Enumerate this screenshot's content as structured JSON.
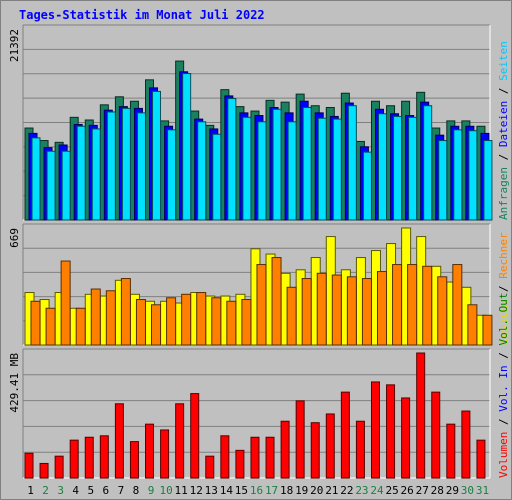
{
  "title": "Tages-Statistik im Monat Juli 2022",
  "chart_data": [
    {
      "type": "bar",
      "panel": "anfragen",
      "y_label": "21392",
      "ylim": [
        0,
        21392
      ],
      "categories": [
        "1",
        "2",
        "3",
        "4",
        "5",
        "6",
        "7",
        "8",
        "9",
        "10",
        "11",
        "12",
        "13",
        "14",
        "15",
        "16",
        "17",
        "18",
        "19",
        "20",
        "21",
        "22",
        "23",
        "24",
        "25",
        "26",
        "27",
        "28",
        "29",
        "30",
        "31"
      ],
      "weekend_days": [
        "2",
        "3",
        "9",
        "10",
        "16",
        "17",
        "23",
        "24",
        "30",
        "31"
      ],
      "side_labels": [
        {
          "text": "Anfragen",
          "color": "#1a8060"
        },
        {
          "text": "/",
          "color": "#000000"
        },
        {
          "text": "Dateien",
          "color": "#0000ff"
        },
        {
          "text": "/",
          "color": "#000000"
        },
        {
          "text": "Seiten",
          "color": "#00c8ff"
        }
      ],
      "series": [
        {
          "name": "Anfragen",
          "color": "#1a8060",
          "values": [
            10300,
            8900,
            8700,
            11500,
            11200,
            12900,
            13800,
            13300,
            15700,
            11100,
            17800,
            12200,
            10600,
            14600,
            12700,
            12200,
            13400,
            13200,
            14100,
            12800,
            12600,
            14200,
            8800,
            13300,
            12800,
            13300,
            14300,
            10300,
            11100,
            11100,
            10500
          ]
        },
        {
          "name": "Dateien",
          "color": "#0000ff",
          "values": [
            9700,
            8100,
            8400,
            10700,
            10600,
            12300,
            12700,
            12500,
            14800,
            10500,
            16600,
            11300,
            10200,
            13900,
            12000,
            11700,
            12600,
            12000,
            13300,
            12000,
            11600,
            13100,
            8200,
            12400,
            11900,
            11700,
            13200,
            9500,
            10500,
            10500,
            9700
          ]
        },
        {
          "name": "Seiten",
          "color": "#00e0ff",
          "values": [
            9200,
            7700,
            7700,
            10500,
            10200,
            12100,
            12500,
            12000,
            14400,
            10100,
            16400,
            11000,
            9600,
            13600,
            11500,
            11000,
            12400,
            11000,
            12600,
            11400,
            11300,
            12800,
            7600,
            11900,
            11600,
            11500,
            12800,
            8900,
            10100,
            10000,
            8900
          ]
        }
      ]
    },
    {
      "type": "bar",
      "panel": "besuche",
      "y_label": "669",
      "ylim": [
        0,
        669
      ],
      "categories": [
        "1",
        "2",
        "3",
        "4",
        "5",
        "6",
        "7",
        "8",
        "9",
        "10",
        "11",
        "12",
        "13",
        "14",
        "15",
        "16",
        "17",
        "18",
        "19",
        "20",
        "21",
        "22",
        "23",
        "24",
        "25",
        "26",
        "27",
        "28",
        "29",
        "30",
        "31"
      ],
      "side_labels": [
        {
          "text": "Besuche",
          "color": "#e0e000"
        },
        {
          "text": "/",
          "color": "#000000"
        },
        {
          "text": "Rechner",
          "color": "#ff8000"
        }
      ],
      "series": [
        {
          "name": "Besuche",
          "color": "#ffff00",
          "values": [
            300,
            260,
            300,
            210,
            290,
            280,
            370,
            290,
            250,
            250,
            240,
            300,
            280,
            280,
            290,
            550,
            520,
            410,
            430,
            500,
            620,
            430,
            500,
            540,
            580,
            670,
            620,
            450,
            360,
            330,
            170
          ]
        },
        {
          "name": "Rechner",
          "color": "#ff8000",
          "values": [
            250,
            210,
            480,
            210,
            320,
            310,
            380,
            260,
            230,
            270,
            290,
            300,
            270,
            250,
            260,
            460,
            500,
            330,
            380,
            410,
            400,
            390,
            380,
            420,
            460,
            460,
            450,
            390,
            460,
            230,
            170
          ]
        }
      ]
    },
    {
      "type": "bar",
      "panel": "volumen",
      "y_label": "429.41 MB",
      "ylim": [
        0,
        429.41
      ],
      "categories": [
        "1",
        "2",
        "3",
        "4",
        "5",
        "6",
        "7",
        "8",
        "9",
        "10",
        "11",
        "12",
        "13",
        "14",
        "15",
        "16",
        "17",
        "18",
        "19",
        "20",
        "21",
        "22",
        "23",
        "24",
        "25",
        "26",
        "27",
        "28",
        "29",
        "30",
        "31"
      ],
      "side_labels": [
        {
          "text": "Volumen",
          "color": "#ff0000"
        },
        {
          "text": "/",
          "color": "#000000"
        },
        {
          "text": "Vol. In",
          "color": "#0000ff"
        },
        {
          "text": "/",
          "color": "#000000"
        },
        {
          "text": "Vol. Out",
          "color": "#008000"
        }
      ],
      "series": [
        {
          "name": "Volumen",
          "color": "#ff0000",
          "values": [
            85,
            50,
            75,
            130,
            140,
            145,
            255,
            125,
            185,
            165,
            255,
            290,
            75,
            145,
            95,
            140,
            140,
            195,
            265,
            190,
            220,
            295,
            195,
            330,
            320,
            275,
            440,
            295,
            185,
            230,
            130
          ]
        }
      ]
    }
  ]
}
